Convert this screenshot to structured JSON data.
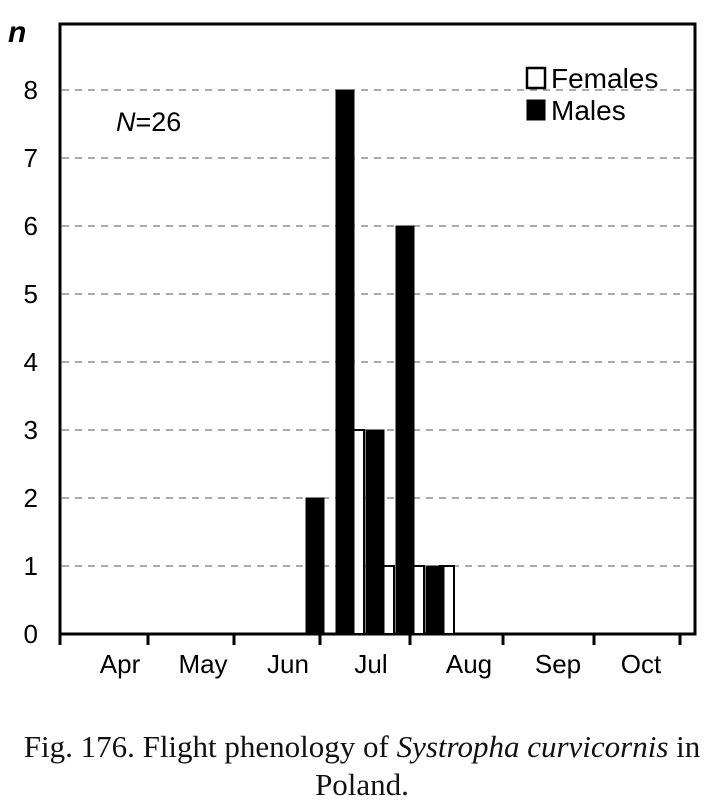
{
  "chart_data": {
    "type": "bar",
    "ylabel": "n",
    "ylim": [
      0,
      9
    ],
    "yticks": [
      "0",
      "1",
      "2",
      "3",
      "4",
      "5",
      "6",
      "7",
      "8"
    ],
    "month_labels": [
      "Apr",
      "May",
      "Jun",
      "Jul",
      "Aug",
      "Sep",
      "Oct"
    ],
    "annotation": {
      "prefix": "N",
      "value": "=26"
    },
    "grid": true,
    "legend_position": "top-right",
    "series": [
      {
        "name": "Females",
        "color": "#ffffff"
      },
      {
        "name": "Males",
        "color": "#000000"
      }
    ],
    "bins": [
      "Jun (3rd decade)",
      "Jul (1st decade)",
      "Jul (2nd decade)",
      "Jul (3rd decade)",
      "Aug (1st decade)"
    ],
    "females": [
      0,
      3,
      1,
      1,
      1
    ],
    "males": [
      2,
      8,
      3,
      6,
      1
    ]
  },
  "caption": {
    "prefix": "Fig. 176. Flight phenology of ",
    "species": "Systropha curvicornis",
    "suffix": " in Poland."
  }
}
